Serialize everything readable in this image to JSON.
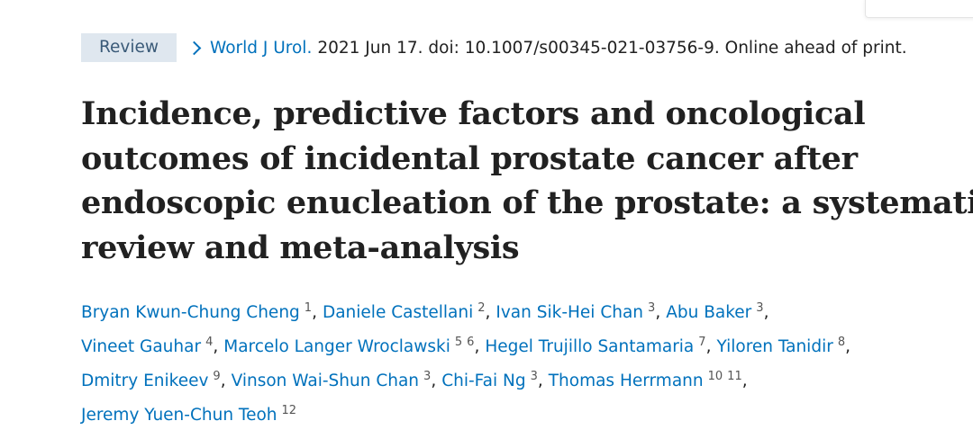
{
  "header": {
    "badge": "Review",
    "journal": "World J Urol.",
    "citation": "2021 Jun 17. doi: 10.1007/s00345-021-03756-9. Online ahead of print."
  },
  "title_lines": [
    "Incidence, predictive factors and oncological",
    "outcomes of incidental prostate cancer after",
    "endoscopic enucleation of the prostate: a systematic",
    "review and meta-analysis"
  ],
  "separator": ",",
  "author_lines": [
    [
      {
        "name": "Bryan Kwun-Chung Cheng",
        "affiliations": [
          "1"
        ]
      },
      {
        "name": "Daniele Castellani",
        "affiliations": [
          "2"
        ]
      },
      {
        "name": "Ivan Sik-Hei Chan",
        "affiliations": [
          "3"
        ]
      },
      {
        "name": "Abu Baker",
        "affiliations": [
          "3"
        ]
      }
    ],
    [
      {
        "name": "Vineet Gauhar",
        "affiliations": [
          "4"
        ]
      },
      {
        "name": "Marcelo Langer Wroclawski",
        "affiliations": [
          "5",
          "6"
        ]
      },
      {
        "name": "Hegel Trujillo Santamaria",
        "affiliations": [
          "7"
        ]
      },
      {
        "name": "Yiloren Tanidir",
        "affiliations": [
          "8"
        ]
      }
    ],
    [
      {
        "name": "Dmitry Enikeev",
        "affiliations": [
          "9"
        ]
      },
      {
        "name": "Vinson Wai-Shun Chan",
        "affiliations": [
          "3"
        ]
      },
      {
        "name": "Chi-Fai Ng",
        "affiliations": [
          "3"
        ]
      },
      {
        "name": "Thomas Herrmann",
        "affiliations": [
          "10",
          "11"
        ]
      }
    ],
    [
      {
        "name": "Jeremy Yuen-Chun Teoh",
        "affiliations": [
          "12"
        ]
      }
    ]
  ]
}
